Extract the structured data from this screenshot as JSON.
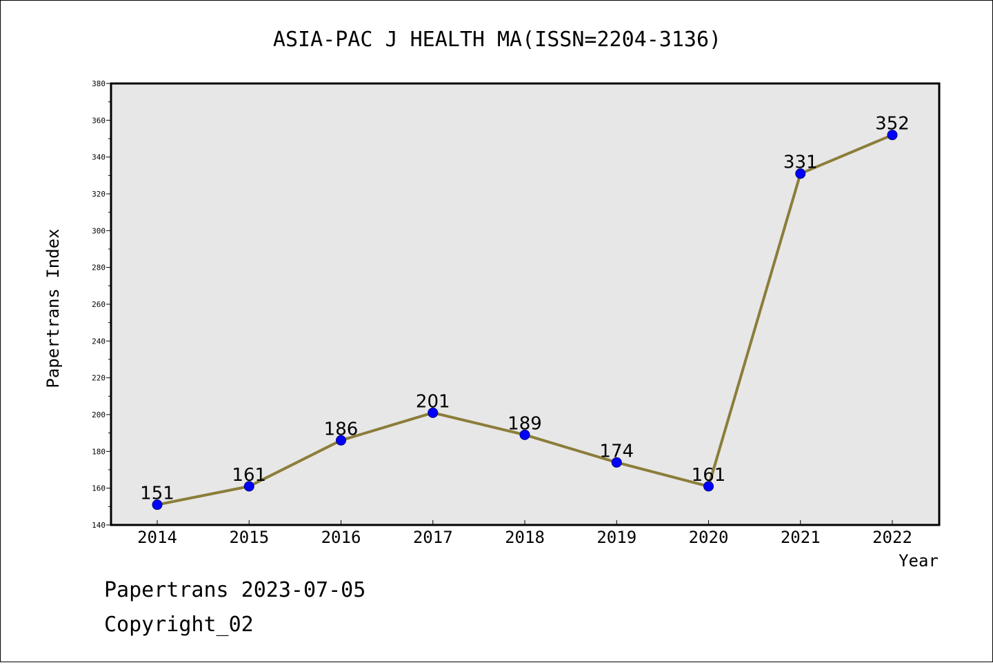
{
  "chart_data": {
    "type": "line",
    "title": "ASIA-PAC J HEALTH MA(ISSN=2204-3136)",
    "xlabel": "Year",
    "ylabel": "Papertrans Index",
    "categories": [
      "2014",
      "2015",
      "2016",
      "2017",
      "2018",
      "2019",
      "2020",
      "2021",
      "2022"
    ],
    "series": [
      {
        "name": "Papertrans Index",
        "values": [
          151,
          161,
          186,
          201,
          189,
          174,
          161,
          331,
          352
        ]
      }
    ],
    "ylim": [
      140,
      380
    ],
    "yticks": [
      "140",
      "160",
      "180",
      "200",
      "220",
      "240",
      "260",
      "280",
      "300",
      "320",
      "340",
      "360",
      "380"
    ],
    "grid": false,
    "line_color": "#8b7d3a",
    "marker_color": "#0000ff",
    "plot_background": "#e7e7e7"
  },
  "footer": {
    "line1": "Papertrans 2023-07-05",
    "line2": "Copyright_02"
  }
}
